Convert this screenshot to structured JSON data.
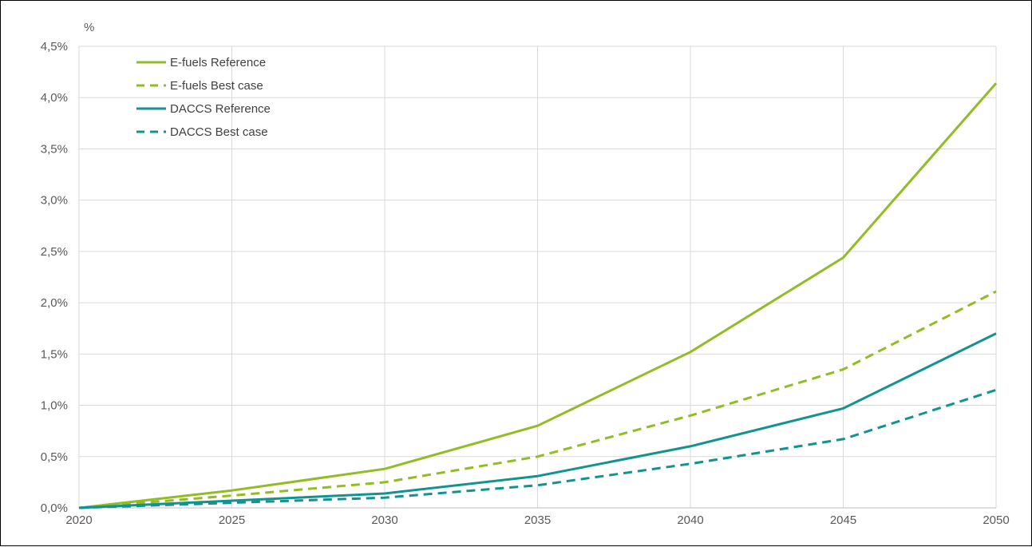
{
  "chart_data": {
    "type": "line",
    "title": "",
    "xlabel": "",
    "ylabel": "%",
    "x": [
      2020,
      2025,
      2030,
      2035,
      2040,
      2045,
      2050
    ],
    "xlim": [
      2020,
      2050
    ],
    "ylim": [
      0,
      4.5
    ],
    "x_ticks": [
      "2020",
      "2025",
      "2030",
      "2035",
      "2040",
      "2045",
      "2050"
    ],
    "y_ticks": [
      "0,0%",
      "0,5%",
      "1,0%",
      "1,5%",
      "2,0%",
      "2,5%",
      "3,0%",
      "3,5%",
      "4,0%",
      "4,5%"
    ],
    "grid": true,
    "legend_position": "top-left",
    "series": [
      {
        "name": "E-fuels Reference",
        "color": "#92bc24",
        "dash": "solid",
        "values": [
          0,
          0.17,
          0.38,
          0.8,
          1.52,
          2.44,
          4.14
        ]
      },
      {
        "name": "E-fuels Best case",
        "color": "#92bc24",
        "dash": "dashed",
        "values": [
          0,
          0.12,
          0.25,
          0.5,
          0.9,
          1.35,
          2.11
        ]
      },
      {
        "name": "DACCS Reference",
        "color": "#13938f",
        "dash": "solid",
        "values": [
          0,
          0.07,
          0.14,
          0.31,
          0.6,
          0.97,
          1.7
        ]
      },
      {
        "name": "DACCS Best case",
        "color": "#13938f",
        "dash": "dashed",
        "values": [
          0,
          0.05,
          0.1,
          0.22,
          0.43,
          0.67,
          1.15
        ]
      }
    ]
  }
}
